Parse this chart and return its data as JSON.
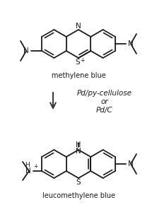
{
  "fig_width": 2.22,
  "fig_height": 3.0,
  "dpi": 100,
  "bg_color": "#ffffff",
  "line_color": "#1a1a1a",
  "line_width": 1.3,
  "mb_label": "methylene blue",
  "lmb_label": "leucomethylene blue",
  "reagent_line1": "Pd/py-cellulose",
  "reagent_line2": "or",
  "reagent_line3": "Pd/C"
}
